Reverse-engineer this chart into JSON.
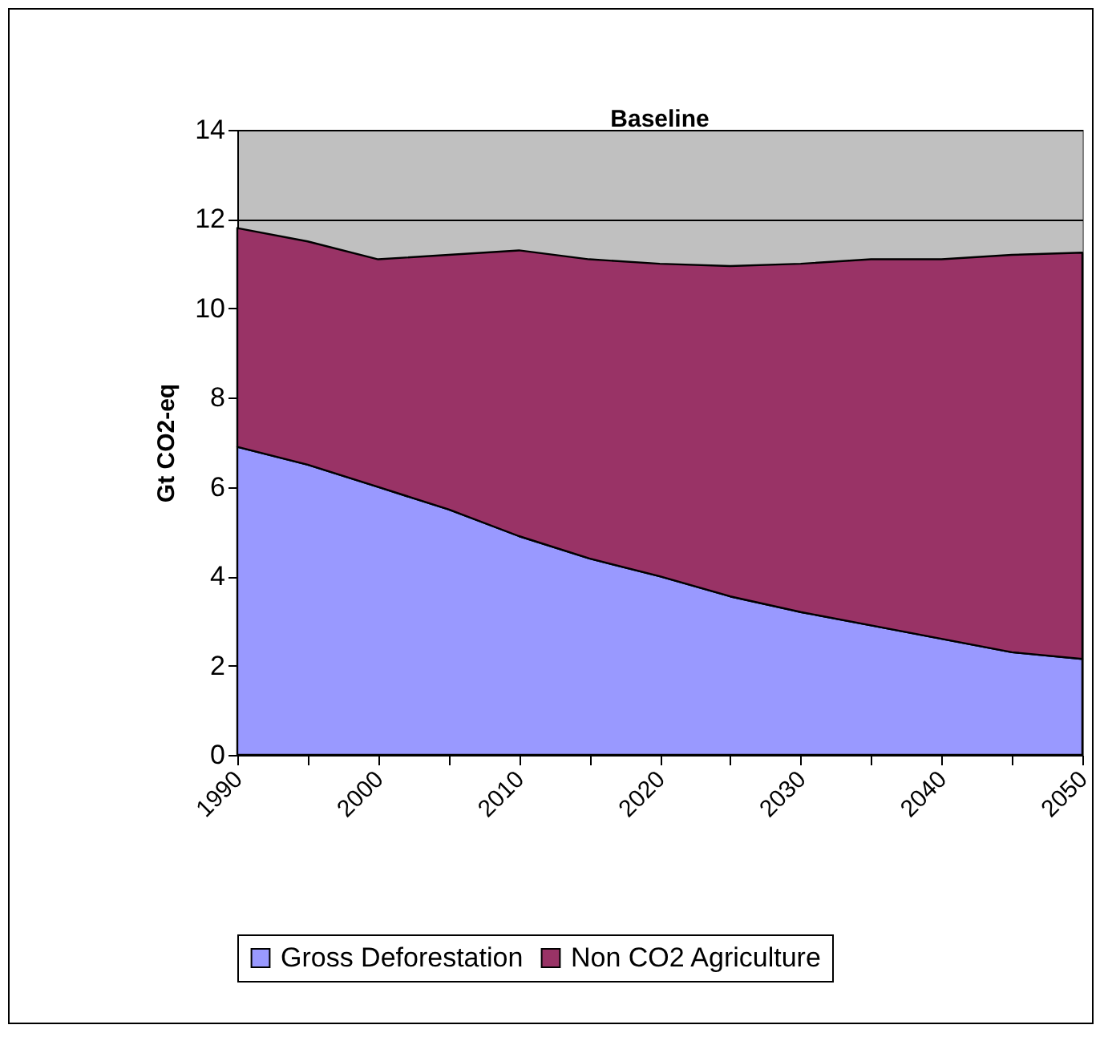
{
  "chart_data": {
    "type": "area",
    "stacked": true,
    "title": "Baseline",
    "ylabel": "Gt CO2-eq",
    "x": [
      1990,
      1995,
      2000,
      2005,
      2010,
      2015,
      2020,
      2025,
      2030,
      2035,
      2040,
      2045,
      2050
    ],
    "series": [
      {
        "name": "Gross Deforestation",
        "color": "#9999ff",
        "values": [
          6.9,
          6.5,
          6.0,
          5.5,
          4.9,
          4.4,
          4.0,
          3.55,
          3.2,
          2.9,
          2.6,
          2.3,
          2.15
        ]
      },
      {
        "name": "Non CO2 Agriculture",
        "color": "#993366",
        "values": [
          4.9,
          5.0,
          5.1,
          5.7,
          6.4,
          6.7,
          7.0,
          7.4,
          7.8,
          8.2,
          8.5,
          8.9,
          9.1
        ]
      }
    ],
    "xlim": [
      1990,
      2050
    ],
    "xticks": [
      1990,
      {
        "value": 1995,
        "label": null
      },
      2000,
      {
        "value": 2005,
        "label": null
      },
      2010,
      {
        "value": 2015,
        "label": null
      },
      2020,
      {
        "value": 2025,
        "label": null
      },
      2030,
      {
        "value": 2035,
        "label": null
      },
      2040,
      {
        "value": 2045,
        "label": null
      },
      2050
    ],
    "ylim": [
      0,
      14
    ],
    "yticks": [
      0,
      2,
      4,
      6,
      8,
      10,
      12,
      14
    ],
    "grid": "y",
    "legend": "bottom"
  }
}
